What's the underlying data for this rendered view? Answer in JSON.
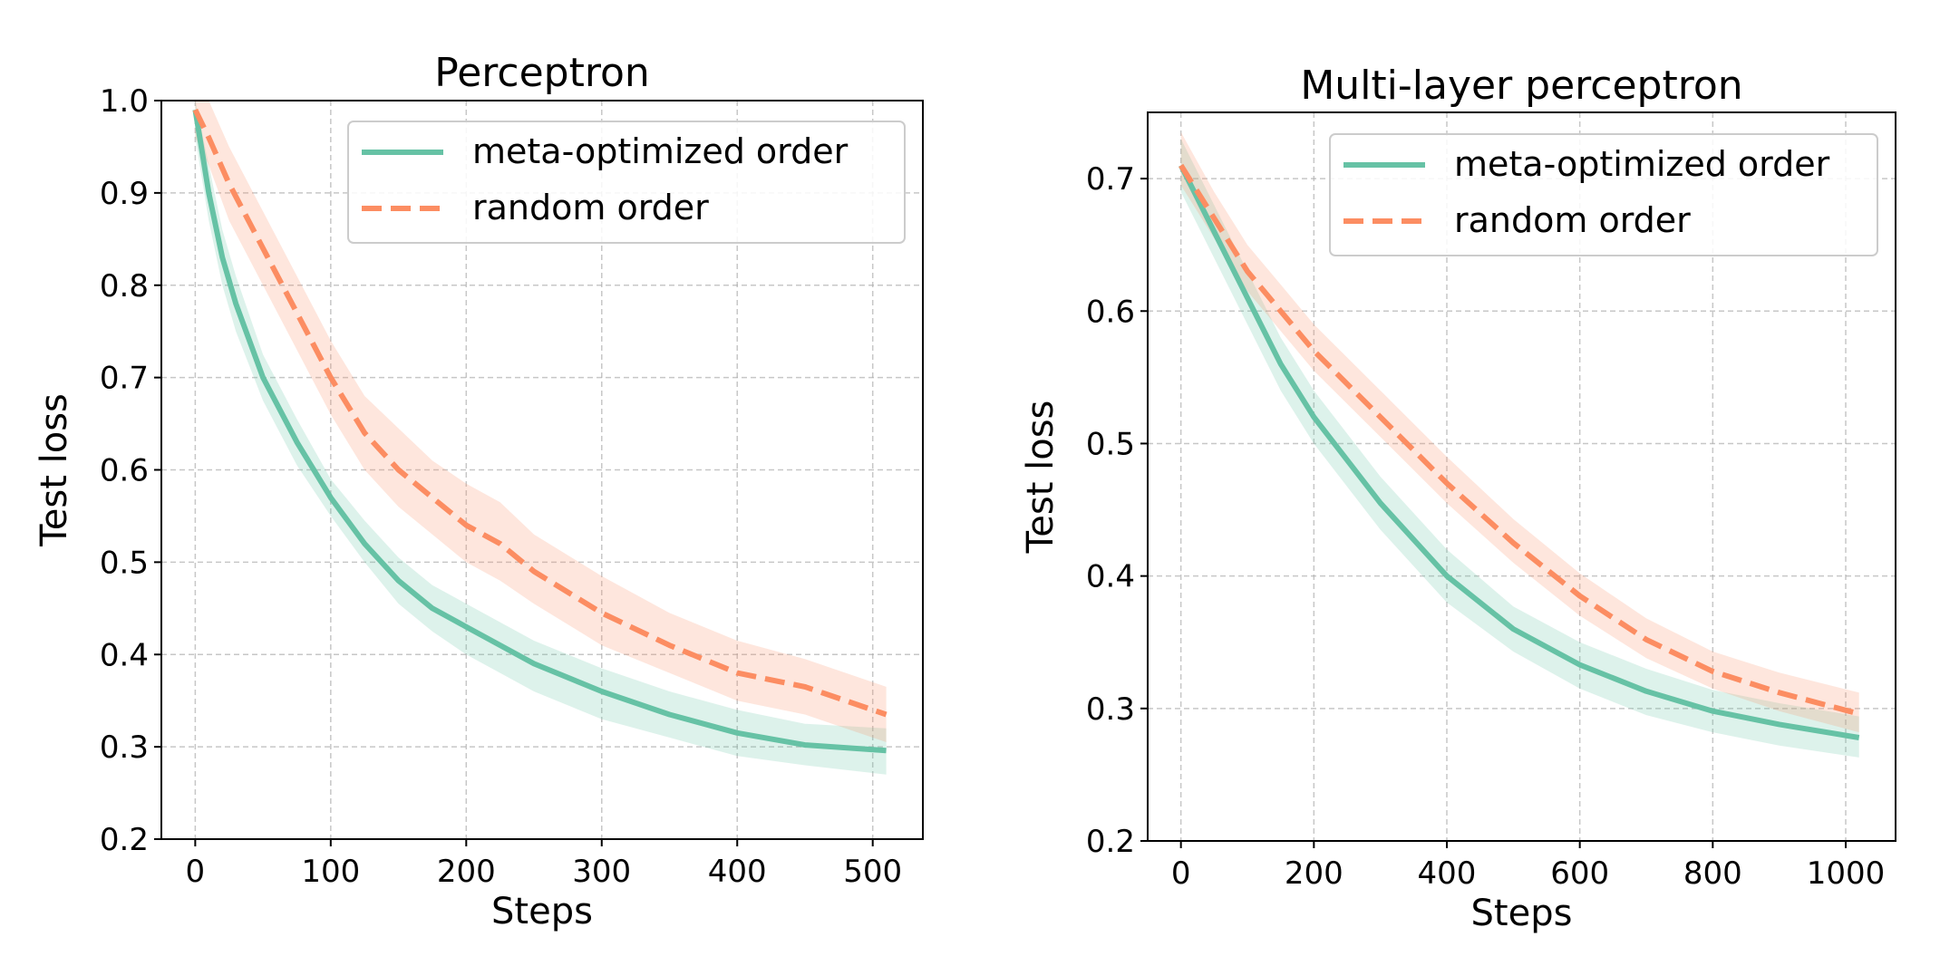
{
  "chart_data": [
    {
      "type": "line",
      "title": "Perceptron",
      "xlabel": "Steps",
      "ylabel": "Test loss",
      "xlim": [
        -25,
        537
      ],
      "ylim": [
        0.2,
        1.0
      ],
      "xticks": [
        0,
        100,
        200,
        300,
        400,
        500
      ],
      "yticks": [
        0.2,
        0.3,
        0.4,
        0.5,
        0.6,
        0.7,
        0.8,
        0.9,
        1.0
      ],
      "grid": true,
      "legend_position": "top-right",
      "series": [
        {
          "name": "meta-optimized order",
          "color": "#66c2a5",
          "style": "solid",
          "x": [
            0,
            10,
            20,
            30,
            50,
            75,
            100,
            125,
            150,
            175,
            200,
            250,
            300,
            350,
            400,
            450,
            510
          ],
          "y": [
            0.99,
            0.9,
            0.83,
            0.78,
            0.7,
            0.63,
            0.57,
            0.52,
            0.48,
            0.45,
            0.43,
            0.39,
            0.36,
            0.335,
            0.315,
            0.302,
            0.296
          ],
          "lower": [
            0.96,
            0.87,
            0.8,
            0.75,
            0.675,
            0.605,
            0.55,
            0.5,
            0.455,
            0.425,
            0.4,
            0.36,
            0.33,
            0.31,
            0.29,
            0.28,
            0.27
          ],
          "upper": [
            1.0,
            0.93,
            0.86,
            0.81,
            0.725,
            0.655,
            0.59,
            0.545,
            0.505,
            0.475,
            0.455,
            0.415,
            0.385,
            0.36,
            0.34,
            0.325,
            0.32
          ]
        },
        {
          "name": "random order",
          "color": "#fc8d62",
          "style": "dashed",
          "x": [
            0,
            10,
            25,
            50,
            75,
            100,
            125,
            150,
            175,
            200,
            225,
            250,
            300,
            350,
            400,
            450,
            510
          ],
          "y": [
            0.99,
            0.96,
            0.91,
            0.84,
            0.77,
            0.7,
            0.64,
            0.6,
            0.57,
            0.54,
            0.52,
            0.49,
            0.445,
            0.41,
            0.38,
            0.365,
            0.335
          ],
          "lower": [
            0.96,
            0.93,
            0.87,
            0.8,
            0.73,
            0.66,
            0.6,
            0.56,
            0.53,
            0.5,
            0.48,
            0.455,
            0.41,
            0.38,
            0.35,
            0.335,
            0.305
          ],
          "upper": [
            1.02,
            1.0,
            0.95,
            0.88,
            0.81,
            0.74,
            0.68,
            0.645,
            0.61,
            0.585,
            0.565,
            0.53,
            0.485,
            0.445,
            0.415,
            0.395,
            0.365
          ]
        }
      ]
    },
    {
      "type": "line",
      "title": "Multi-layer perceptron",
      "xlabel": "Steps",
      "ylabel": "Test loss",
      "xlim": [
        -50,
        1075
      ],
      "ylim": [
        0.2,
        0.75
      ],
      "xticks": [
        0,
        200,
        400,
        600,
        800,
        1000
      ],
      "yticks": [
        0.2,
        0.3,
        0.4,
        0.5,
        0.6,
        0.7
      ],
      "grid": true,
      "legend_position": "top-right",
      "series": [
        {
          "name": "meta-optimized order",
          "color": "#66c2a5",
          "style": "solid",
          "x": [
            0,
            50,
            100,
            150,
            200,
            300,
            400,
            500,
            600,
            700,
            800,
            900,
            1020
          ],
          "y": [
            0.71,
            0.66,
            0.61,
            0.56,
            0.52,
            0.455,
            0.4,
            0.36,
            0.333,
            0.313,
            0.298,
            0.288,
            0.278
          ],
          "lower": [
            0.69,
            0.64,
            0.59,
            0.54,
            0.5,
            0.435,
            0.38,
            0.343,
            0.315,
            0.295,
            0.282,
            0.272,
            0.263
          ],
          "upper": [
            0.73,
            0.68,
            0.63,
            0.58,
            0.54,
            0.475,
            0.42,
            0.377,
            0.35,
            0.33,
            0.314,
            0.304,
            0.294
          ]
        },
        {
          "name": "random order",
          "color": "#fc8d62",
          "style": "dashed",
          "x": [
            0,
            50,
            100,
            150,
            200,
            300,
            400,
            500,
            600,
            700,
            800,
            900,
            1020
          ],
          "y": [
            0.71,
            0.67,
            0.63,
            0.6,
            0.57,
            0.52,
            0.47,
            0.425,
            0.385,
            0.352,
            0.328,
            0.312,
            0.296
          ],
          "lower": [
            0.695,
            0.655,
            0.615,
            0.585,
            0.555,
            0.505,
            0.455,
            0.41,
            0.37,
            0.338,
            0.315,
            0.298,
            0.282
          ],
          "upper": [
            0.735,
            0.69,
            0.65,
            0.62,
            0.59,
            0.54,
            0.49,
            0.443,
            0.402,
            0.368,
            0.343,
            0.327,
            0.312
          ]
        }
      ]
    }
  ]
}
